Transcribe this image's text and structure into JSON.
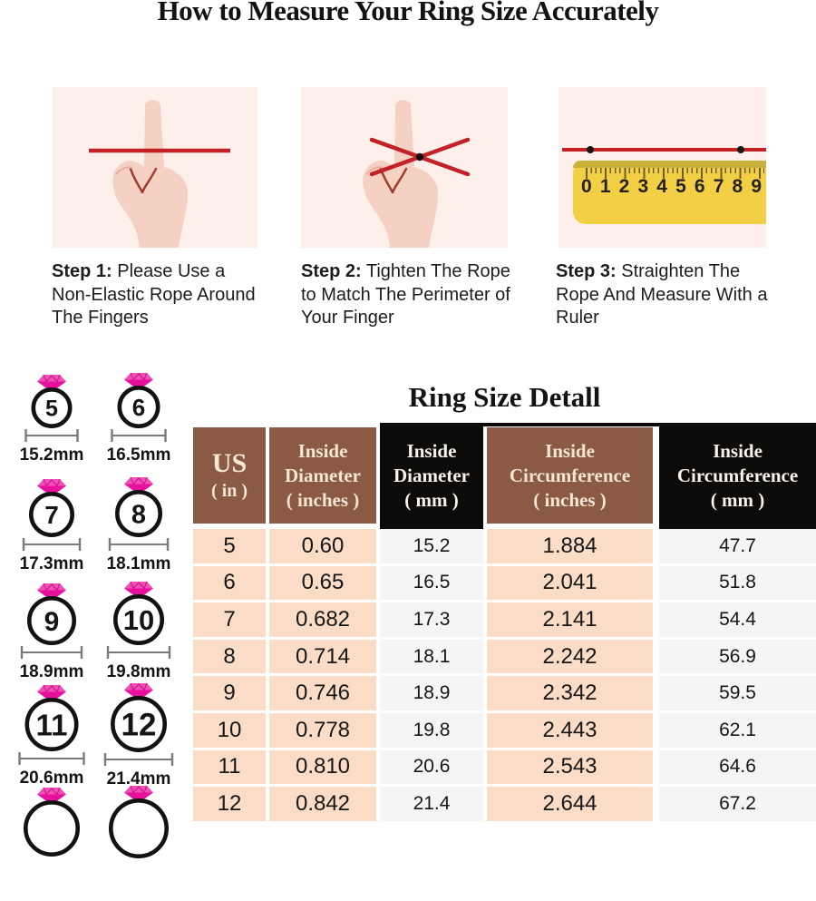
{
  "page": {
    "title": "How to Measure Your Ring Size Accurately"
  },
  "steps": [
    {
      "label": "Step 1:",
      "text": "Please Use a Non-Elastic Rope Around The Fingers"
    },
    {
      "label": "Step 2:",
      "text": "Tighten The Rope to Match The Perimeter of Your Finger"
    },
    {
      "label": "Step 3:",
      "text": "Straighten The Rope And Measure With a Ruler"
    }
  ],
  "ruler": {
    "numbers": [
      "0",
      "1",
      "2",
      "3",
      "4",
      "5",
      "6",
      "7",
      "8",
      "9"
    ]
  },
  "ring_sizer": {
    "rings": [
      {
        "us": "5",
        "diameter": "15.2mm"
      },
      {
        "us": "6",
        "diameter": "16.5mm"
      },
      {
        "us": "7",
        "diameter": "17.3mm"
      },
      {
        "us": "8",
        "diameter": "18.1mm"
      },
      {
        "us": "9",
        "diameter": "18.9mm"
      },
      {
        "us": "10",
        "diameter": "19.8mm"
      },
      {
        "us": "11",
        "diameter": "20.6mm"
      },
      {
        "us": "12",
        "diameter": "21.4mm"
      }
    ]
  },
  "table": {
    "title": "Ring Size Detall",
    "columns": [
      {
        "lines": [
          "US",
          "( in )"
        ],
        "theme": "brown"
      },
      {
        "lines": [
          "Inside",
          "Diameter",
          "( inches )"
        ],
        "theme": "brown"
      },
      {
        "lines": [
          "Inside",
          "Diameter",
          "( mm )"
        ],
        "theme": "black"
      },
      {
        "lines": [
          "Inside",
          "Circumference",
          "( inches )"
        ],
        "theme": "brown"
      },
      {
        "lines": [
          "Inside",
          "Circumference",
          "( mm )"
        ],
        "theme": "black"
      }
    ],
    "rows": [
      [
        "5",
        "0.60",
        "15.2",
        "1.884",
        "47.7"
      ],
      [
        "6",
        "0.65",
        "16.5",
        "2.041",
        "51.8"
      ],
      [
        "7",
        "0.682",
        "17.3",
        "2.141",
        "54.4"
      ],
      [
        "8",
        "0.714",
        "18.1",
        "2.242",
        "56.9"
      ],
      [
        "9",
        "0.746",
        "18.9",
        "2.342",
        "59.5"
      ],
      [
        "10",
        "0.778",
        "19.8",
        "2.443",
        "62.1"
      ],
      [
        "11",
        "0.810",
        "20.6",
        "2.543",
        "64.6"
      ],
      [
        "12",
        "0.842",
        "21.4",
        "2.644",
        "67.2"
      ]
    ]
  },
  "colors": {
    "header_brown": "#8a5a45",
    "header_black": "#0d0b0a",
    "cell_pink": "#fbdcc7",
    "cell_gray": "#f5f5f6",
    "panel_pink": "#fdf0ea",
    "rope_red": "#c42127",
    "ruler_yellow": "#f2cf45",
    "gem_pink": "#e8119d"
  }
}
